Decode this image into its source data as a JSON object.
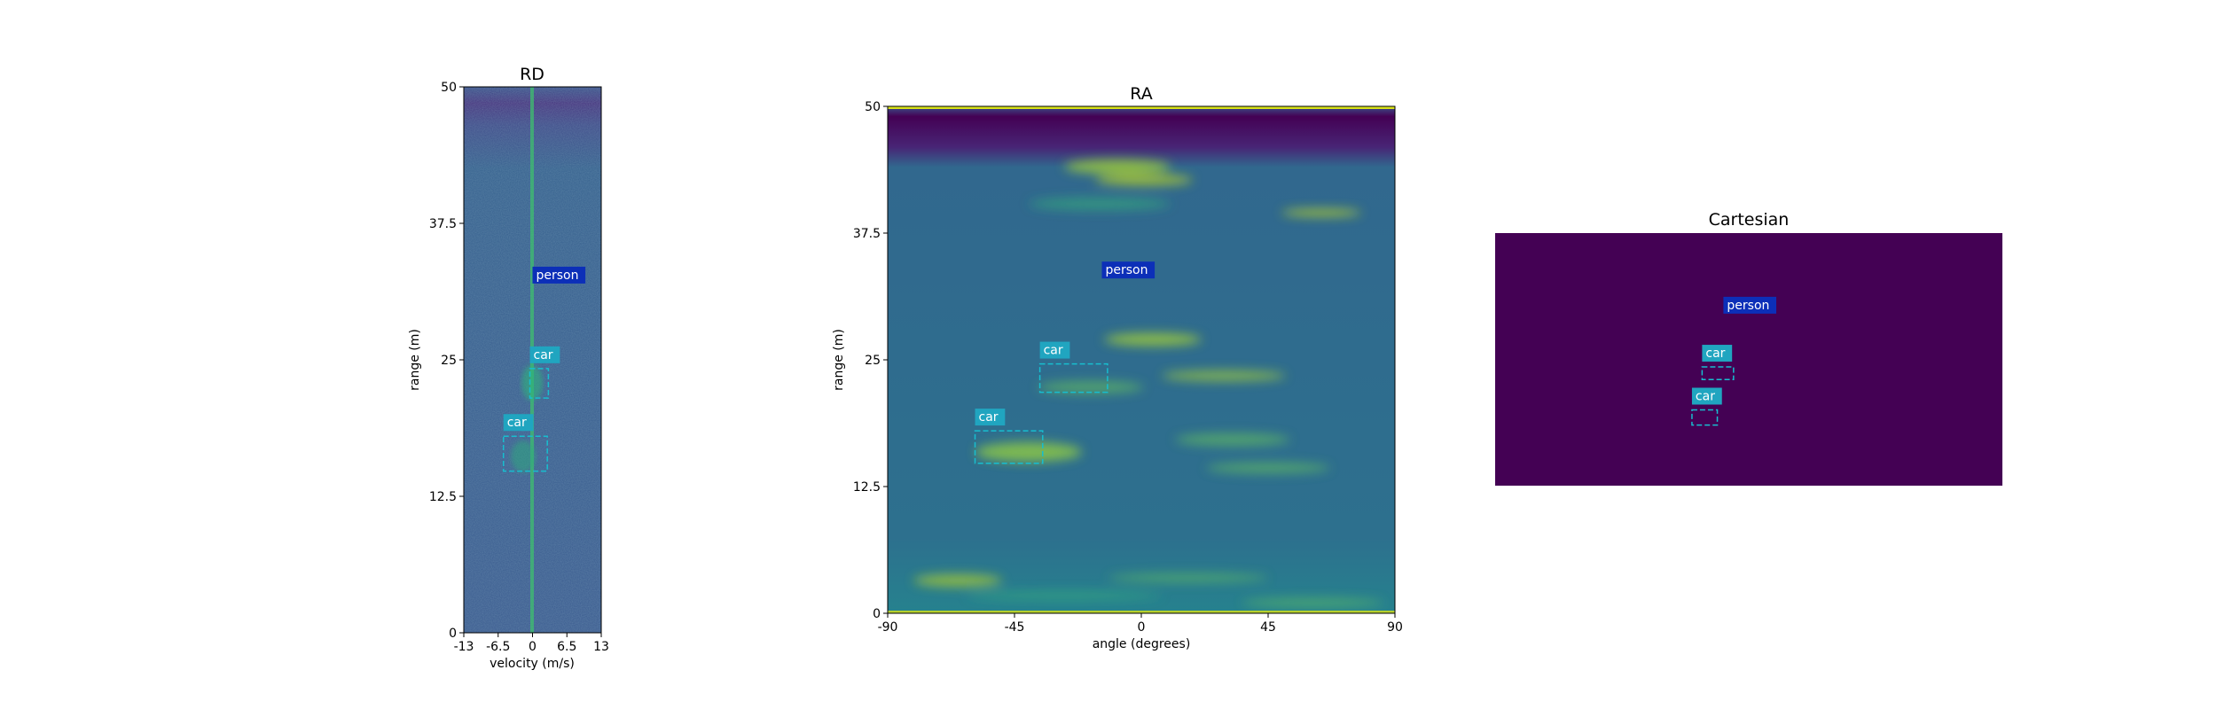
{
  "colors": {
    "heat_low": "#440154",
    "heat_mid": "#31688e",
    "heat_base": "#3a5a8f",
    "heat_high": "#d8e219",
    "car_box": "#17becf",
    "car_label_bg": "#20a5c0",
    "person_label_bg": "#0c2fb8"
  },
  "chart_data": [
    {
      "id": "rd",
      "type": "heatmap",
      "title": "RD",
      "xlabel": "velocity (m/s)",
      "ylabel": "range (m)",
      "xlim": [
        -13,
        13
      ],
      "ylim": [
        0,
        50
      ],
      "xticks": [
        "-13",
        "-6.5",
        "0",
        "6.5",
        "13"
      ],
      "xtick_values": [
        -13,
        -6.5,
        0,
        6.5,
        13
      ],
      "yticks": [
        "0",
        "12.5",
        "25",
        "37.5",
        "50"
      ],
      "ytick_values": [
        0,
        12.5,
        25,
        37.5,
        50
      ],
      "annotations": [
        {
          "label": "person",
          "kind": "person",
          "x": [
            0,
            0
          ],
          "y": [
            31.5,
            31.5
          ]
        },
        {
          "label": "car",
          "kind": "car",
          "x": [
            -0.5,
            3
          ],
          "y": [
            21.5,
            24.2
          ]
        },
        {
          "label": "car",
          "kind": "car",
          "x": [
            -5.5,
            2.8
          ],
          "y": [
            14.8,
            18
          ]
        }
      ]
    },
    {
      "id": "ra",
      "type": "heatmap",
      "title": "RA",
      "xlabel": "angle (degrees)",
      "ylabel": "range (m)",
      "xlim": [
        -90,
        90
      ],
      "ylim": [
        0,
        50
      ],
      "xticks": [
        "-90",
        "-45",
        "0",
        "45",
        "90"
      ],
      "xtick_values": [
        -90,
        -45,
        0,
        45,
        90
      ],
      "yticks": [
        "0",
        "12.5",
        "25",
        "37.5",
        "50"
      ],
      "ytick_values": [
        0,
        12.5,
        25,
        37.5,
        50
      ],
      "annotations": [
        {
          "label": "person",
          "kind": "person",
          "x": [
            -14,
            -14
          ],
          "y": [
            32.5,
            32.5
          ]
        },
        {
          "label": "car",
          "kind": "car",
          "x": [
            -36,
            -12
          ],
          "y": [
            21.8,
            24.6
          ]
        },
        {
          "label": "car",
          "kind": "car",
          "x": [
            -59,
            -35
          ],
          "y": [
            14.8,
            18
          ]
        }
      ]
    },
    {
      "id": "cartesian",
      "type": "heatmap",
      "title": "Cartesian",
      "xlabel": "",
      "ylabel": "",
      "xlim": [
        0,
        100
      ],
      "ylim": [
        0,
        100
      ],
      "annotations": [
        {
          "label": "person",
          "kind": "person",
          "x": [
            45,
            45
          ],
          "y": [
            66,
            66
          ]
        },
        {
          "label": "car",
          "kind": "car",
          "x": [
            40.8,
            47
          ],
          "y": [
            42,
            47
          ]
        },
        {
          "label": "car",
          "kind": "car",
          "x": [
            38.8,
            43.8
          ],
          "y": [
            24,
            30
          ]
        }
      ]
    }
  ]
}
